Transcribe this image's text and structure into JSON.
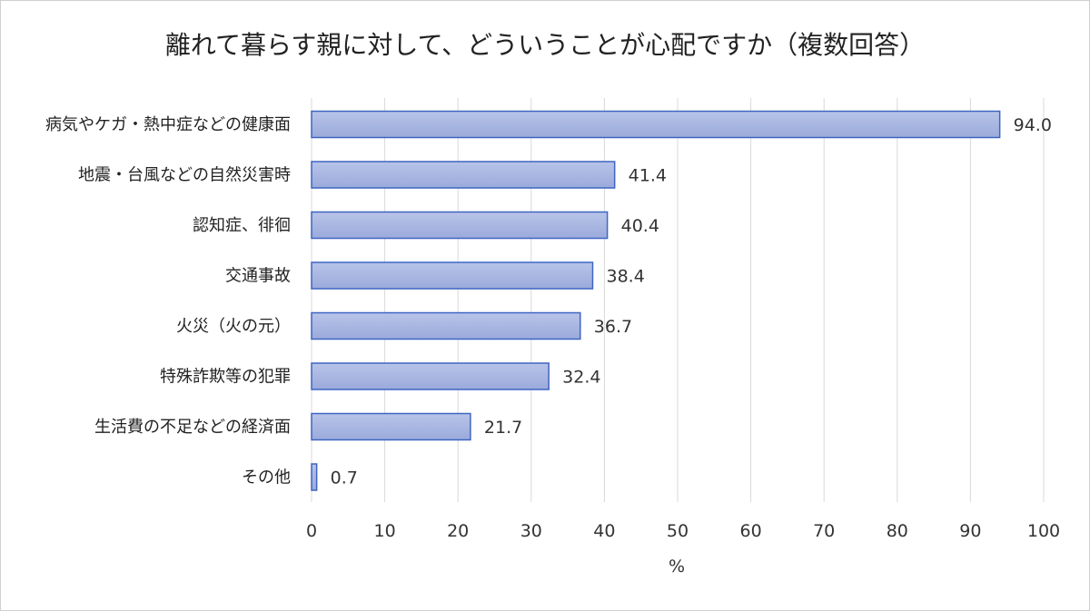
{
  "chart_data": {
    "type": "bar",
    "orientation": "horizontal",
    "title": "離れて暮らす親に対して、どういうことが心配ですか（複数回答）",
    "categories": [
      "病気やケガ・熱中症などの健康面",
      "地震・台風などの自然災害時",
      "認知症、徘徊",
      "交通事故",
      "火災（火の元）",
      "特殊詐欺等の犯罪",
      "生活費の不足などの経済面",
      "その他"
    ],
    "values": [
      94.0,
      41.4,
      40.4,
      38.4,
      36.7,
      32.4,
      21.7,
      0.7
    ],
    "value_labels": [
      "94.0",
      "41.4",
      "40.4",
      "38.4",
      "36.7",
      "32.4",
      "21.7",
      "0.7"
    ],
    "xlabel": "%",
    "ylabel": "",
    "xlim": [
      0,
      100
    ],
    "xticks": [
      "0",
      "10",
      "20",
      "30",
      "40",
      "50",
      "60",
      "70",
      "80",
      "90",
      "100"
    ],
    "grid": "vertical",
    "legend": "none",
    "colors": {
      "bar_fill": "#a9b7e0",
      "bar_stroke": "#3f64c2",
      "grid": "#d9d9d9"
    }
  }
}
